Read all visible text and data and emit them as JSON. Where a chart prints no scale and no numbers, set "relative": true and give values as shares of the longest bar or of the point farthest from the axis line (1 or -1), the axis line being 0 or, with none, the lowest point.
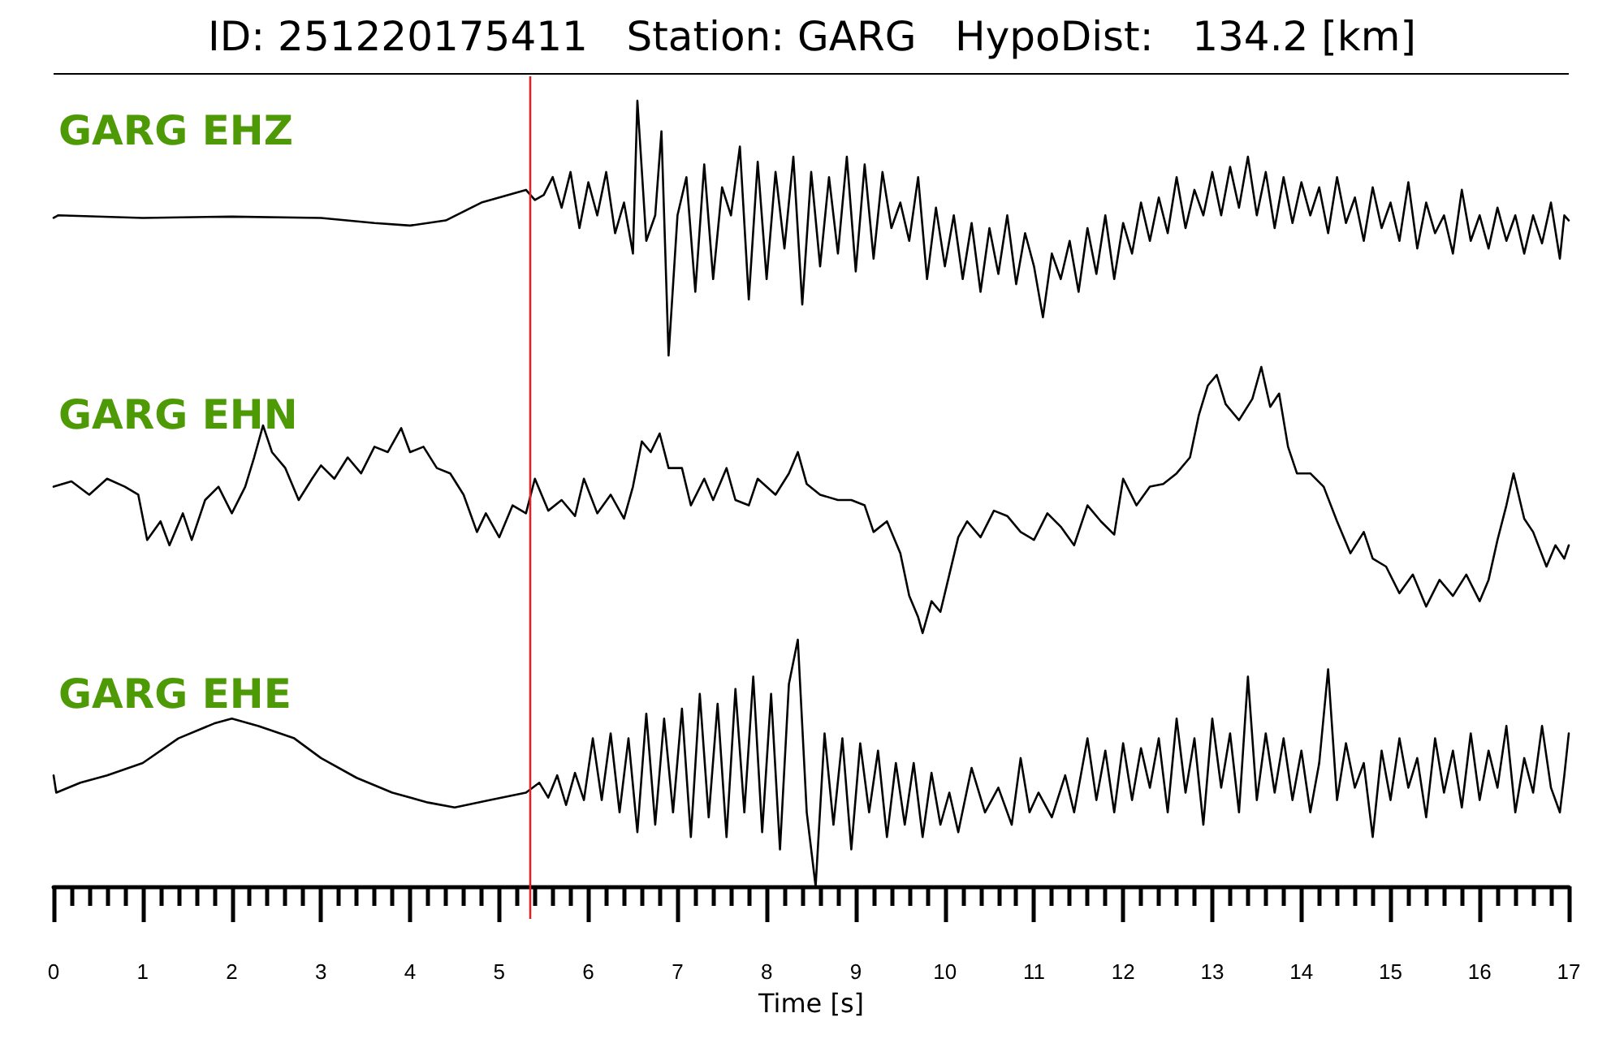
{
  "chart_data": [
    {
      "type": "line",
      "title": "ID: 251220175411   Station: GARG   HypoDist:   134.2 [km]",
      "relative": true,
      "xlim": [
        0,
        17
      ],
      "tick_labels": false,
      "legend": "top left",
      "marker": "none",
      "ref_lines": [
        {
          "axis": "x",
          "value": 5.35,
          "color": "#d62728"
        }
      ],
      "x": [
        0,
        0.05,
        1,
        2,
        3,
        3.6,
        4,
        4.4,
        4.8,
        5.3,
        5.4,
        5.5,
        5.6,
        5.7,
        5.8,
        5.9,
        6.0,
        6.1,
        6.2,
        6.3,
        6.4,
        6.5,
        6.55,
        6.65,
        6.75,
        6.82,
        6.9,
        7.0,
        7.1,
        7.2,
        7.3,
        7.4,
        7.5,
        7.6,
        7.7,
        7.8,
        7.9,
        8.0,
        8.1,
        8.2,
        8.3,
        8.4,
        8.5,
        8.6,
        8.7,
        8.8,
        8.9,
        9.0,
        9.1,
        9.2,
        9.3,
        9.4,
        9.5,
        9.6,
        9.7,
        9.8,
        9.9,
        10.0,
        10.1,
        10.2,
        10.3,
        10.4,
        10.5,
        10.6,
        10.7,
        10.8,
        10.9,
        11.0,
        11.1,
        11.2,
        11.3,
        11.4,
        11.5,
        11.6,
        11.7,
        11.8,
        11.9,
        12.0,
        12.1,
        12.2,
        12.3,
        12.4,
        12.5,
        12.6,
        12.7,
        12.8,
        12.9,
        13.0,
        13.1,
        13.2,
        13.3,
        13.4,
        13.5,
        13.6,
        13.7,
        13.8,
        13.9,
        14.0,
        14.1,
        14.2,
        14.3,
        14.4,
        14.5,
        14.6,
        14.7,
        14.8,
        14.9,
        15.0,
        15.1,
        15.2,
        15.3,
        15.4,
        15.5,
        15.6,
        15.7,
        15.8,
        15.9,
        16.0,
        16.1,
        16.2,
        16.3,
        16.4,
        16.5,
        16.6,
        16.7,
        16.8,
        16.9,
        16.95,
        17.0
      ],
      "series": [
        {
          "name": "GARG EHZ",
          "color": "#000000",
          "values": [
            0.54,
            0.55,
            0.54,
            0.545,
            0.54,
            0.52,
            0.51,
            0.53,
            0.6,
            0.65,
            0.61,
            0.63,
            0.7,
            0.58,
            0.72,
            0.5,
            0.68,
            0.55,
            0.72,
            0.48,
            0.6,
            0.4,
            1.0,
            0.45,
            0.55,
            0.88,
            0.0,
            0.55,
            0.7,
            0.25,
            0.75,
            0.3,
            0.66,
            0.55,
            0.82,
            0.22,
            0.76,
            0.3,
            0.72,
            0.42,
            0.78,
            0.2,
            0.72,
            0.35,
            0.7,
            0.4,
            0.78,
            0.33,
            0.75,
            0.38,
            0.72,
            0.5,
            0.6,
            0.45,
            0.7,
            0.3,
            0.58,
            0.35,
            0.55,
            0.3,
            0.52,
            0.25,
            0.5,
            0.32,
            0.55,
            0.28,
            0.48,
            0.35,
            0.15,
            0.4,
            0.3,
            0.45,
            0.25,
            0.5,
            0.32,
            0.55,
            0.3,
            0.52,
            0.4,
            0.6,
            0.45,
            0.62,
            0.48,
            0.7,
            0.5,
            0.65,
            0.55,
            0.72,
            0.55,
            0.74,
            0.58,
            0.78,
            0.55,
            0.72,
            0.5,
            0.7,
            0.52,
            0.68,
            0.55,
            0.66,
            0.48,
            0.7,
            0.52,
            0.62,
            0.45,
            0.66,
            0.5,
            0.6,
            0.45,
            0.68,
            0.42,
            0.6,
            0.48,
            0.55,
            0.4,
            0.65,
            0.45,
            0.55,
            0.42,
            0.58,
            0.45,
            0.55,
            0.4,
            0.55,
            0.44,
            0.6,
            0.38,
            0.55,
            0.53
          ]
        }
      ]
    },
    {
      "type": "line",
      "relative": true,
      "xlim": [
        0,
        17
      ],
      "tick_labels": false,
      "legend": "top left",
      "marker": "none",
      "ref_lines": [
        {
          "axis": "x",
          "value": 5.35,
          "color": "#d62728"
        }
      ],
      "x": [
        0,
        0.2,
        0.4,
        0.6,
        0.8,
        0.95,
        1.05,
        1.2,
        1.3,
        1.45,
        1.55,
        1.7,
        1.85,
        2.0,
        2.15,
        2.25,
        2.35,
        2.45,
        2.6,
        2.75,
        2.9,
        3.0,
        3.15,
        3.3,
        3.45,
        3.6,
        3.75,
        3.9,
        4.0,
        4.15,
        4.3,
        4.45,
        4.6,
        4.75,
        4.85,
        5.0,
        5.15,
        5.3,
        5.4,
        5.55,
        5.7,
        5.85,
        5.95,
        6.1,
        6.25,
        6.4,
        6.5,
        6.6,
        6.7,
        6.8,
        6.9,
        7.05,
        7.15,
        7.3,
        7.4,
        7.55,
        7.65,
        7.8,
        7.9,
        8.1,
        8.25,
        8.35,
        8.45,
        8.6,
        8.8,
        8.95,
        9.1,
        9.2,
        9.35,
        9.5,
        9.6,
        9.7,
        9.75,
        9.85,
        9.95,
        10.05,
        10.15,
        10.25,
        10.4,
        10.55,
        10.7,
        10.85,
        11.0,
        11.15,
        11.3,
        11.45,
        11.6,
        11.75,
        11.9,
        12.0,
        12.15,
        12.3,
        12.45,
        12.6,
        12.75,
        12.85,
        12.95,
        13.05,
        13.15,
        13.3,
        13.45,
        13.55,
        13.65,
        13.75,
        13.85,
        13.95,
        14.1,
        14.25,
        14.4,
        14.55,
        14.7,
        14.8,
        14.95,
        15.1,
        15.25,
        15.4,
        15.55,
        15.7,
        15.85,
        16.0,
        16.1,
        16.2,
        16.3,
        16.38,
        16.5,
        16.6,
        16.75,
        16.85,
        16.95,
        17.0
      ],
      "series": [
        {
          "name": "GARG EHN",
          "color": "#000000",
          "values": [
            0.55,
            0.57,
            0.52,
            0.58,
            0.55,
            0.52,
            0.35,
            0.42,
            0.33,
            0.45,
            0.35,
            0.5,
            0.55,
            0.45,
            0.55,
            0.66,
            0.78,
            0.68,
            0.62,
            0.5,
            0.58,
            0.63,
            0.58,
            0.66,
            0.6,
            0.7,
            0.68,
            0.77,
            0.68,
            0.7,
            0.62,
            0.6,
            0.52,
            0.38,
            0.45,
            0.36,
            0.48,
            0.45,
            0.58,
            0.46,
            0.5,
            0.44,
            0.58,
            0.45,
            0.52,
            0.43,
            0.55,
            0.72,
            0.68,
            0.75,
            0.62,
            0.62,
            0.48,
            0.58,
            0.5,
            0.62,
            0.5,
            0.48,
            0.58,
            0.52,
            0.6,
            0.68,
            0.56,
            0.52,
            0.5,
            0.5,
            0.48,
            0.38,
            0.42,
            0.3,
            0.14,
            0.06,
            0.0,
            0.12,
            0.08,
            0.22,
            0.36,
            0.42,
            0.36,
            0.46,
            0.44,
            0.38,
            0.35,
            0.45,
            0.4,
            0.33,
            0.48,
            0.42,
            0.37,
            0.58,
            0.48,
            0.55,
            0.56,
            0.6,
            0.66,
            0.82,
            0.93,
            0.97,
            0.86,
            0.8,
            0.88,
            1.0,
            0.85,
            0.9,
            0.7,
            0.6,
            0.6,
            0.55,
            0.42,
            0.3,
            0.38,
            0.28,
            0.25,
            0.15,
            0.22,
            0.1,
            0.2,
            0.14,
            0.22,
            0.12,
            0.2,
            0.35,
            0.48,
            0.6,
            0.43,
            0.38,
            0.25,
            0.33,
            0.28,
            0.33
          ]
        }
      ]
    },
    {
      "type": "line",
      "relative": true,
      "xlim": [
        0,
        17
      ],
      "tick_labels": "x",
      "legend": "top left",
      "marker": "none",
      "xlabel": "Time [s]",
      "ref_lines": [
        {
          "axis": "x",
          "value": 5.35,
          "color": "#d62728"
        }
      ],
      "xticks": [
        0,
        {
          "value": 0.2,
          "label": null
        },
        {
          "value": 0.4,
          "label": null
        },
        {
          "value": 0.6,
          "label": null
        },
        {
          "value": 0.8,
          "label": null
        },
        1,
        {
          "value": 1.2,
          "label": null
        },
        {
          "value": 1.4,
          "label": null
        },
        {
          "value": 1.6,
          "label": null
        },
        {
          "value": 1.8,
          "label": null
        },
        2,
        {
          "value": 2.2,
          "label": null
        },
        {
          "value": 2.4,
          "label": null
        },
        {
          "value": 2.6,
          "label": null
        },
        {
          "value": 2.8,
          "label": null
        },
        3,
        {
          "value": 3.2,
          "label": null
        },
        {
          "value": 3.4,
          "label": null
        },
        {
          "value": 3.6,
          "label": null
        },
        {
          "value": 3.8,
          "label": null
        },
        4,
        {
          "value": 4.2,
          "label": null
        },
        {
          "value": 4.4,
          "label": null
        },
        {
          "value": 4.6,
          "label": null
        },
        {
          "value": 4.8,
          "label": null
        },
        5,
        {
          "value": 5.2,
          "label": null
        },
        {
          "value": 5.4,
          "label": null
        },
        {
          "value": 5.6,
          "label": null
        },
        {
          "value": 5.8,
          "label": null
        },
        6,
        {
          "value": 6.2,
          "label": null
        },
        {
          "value": 6.4,
          "label": null
        },
        {
          "value": 6.6,
          "label": null
        },
        {
          "value": 6.8,
          "label": null
        },
        7,
        {
          "value": 7.2,
          "label": null
        },
        {
          "value": 7.4,
          "label": null
        },
        {
          "value": 7.6,
          "label": null
        },
        {
          "value": 7.8,
          "label": null
        },
        8,
        {
          "value": 8.2,
          "label": null
        },
        {
          "value": 8.4,
          "label": null
        },
        {
          "value": 8.6,
          "label": null
        },
        {
          "value": 8.8,
          "label": null
        },
        9,
        {
          "value": 9.2,
          "label": null
        },
        {
          "value": 9.4,
          "label": null
        },
        {
          "value": 9.6,
          "label": null
        },
        {
          "value": 9.8,
          "label": null
        },
        10,
        {
          "value": 10.2,
          "label": null
        },
        {
          "value": 10.4,
          "label": null
        },
        {
          "value": 10.6,
          "label": null
        },
        {
          "value": 10.8,
          "label": null
        },
        11,
        {
          "value": 11.2,
          "label": null
        },
        {
          "value": 11.4,
          "label": null
        },
        {
          "value": 11.6,
          "label": null
        },
        {
          "value": 11.8,
          "label": null
        },
        12,
        {
          "value": 12.2,
          "label": null
        },
        {
          "value": 12.4,
          "label": null
        },
        {
          "value": 12.6,
          "label": null
        },
        {
          "value": 12.8,
          "label": null
        },
        13,
        {
          "value": 13.2,
          "label": null
        },
        {
          "value": 13.4,
          "label": null
        },
        {
          "value": 13.6,
          "label": null
        },
        {
          "value": 13.8,
          "label": null
        },
        14,
        {
          "value": 14.2,
          "label": null
        },
        {
          "value": 14.4,
          "label": null
        },
        {
          "value": 14.6,
          "label": null
        },
        {
          "value": 14.8,
          "label": null
        },
        15,
        {
          "value": 15.2,
          "label": null
        },
        {
          "value": 15.4,
          "label": null
        },
        {
          "value": 15.6,
          "label": null
        },
        {
          "value": 15.8,
          "label": null
        },
        16,
        {
          "value": 16.2,
          "label": null
        },
        {
          "value": 16.4,
          "label": null
        },
        {
          "value": 16.6,
          "label": null
        },
        {
          "value": 16.8,
          "label": null
        },
        17
      ],
      "x": [
        0,
        0.03,
        0.3,
        0.6,
        1.0,
        1.4,
        1.8,
        2.0,
        2.3,
        2.7,
        3.0,
        3.4,
        3.8,
        4.2,
        4.5,
        4.9,
        5.3,
        5.45,
        5.55,
        5.65,
        5.75,
        5.85,
        5.95,
        6.05,
        6.15,
        6.25,
        6.35,
        6.45,
        6.55,
        6.65,
        6.75,
        6.85,
        6.95,
        7.05,
        7.15,
        7.25,
        7.35,
        7.45,
        7.55,
        7.65,
        7.75,
        7.85,
        7.95,
        8.05,
        8.15,
        8.25,
        8.35,
        8.45,
        8.55,
        8.65,
        8.75,
        8.85,
        8.95,
        9.05,
        9.15,
        9.25,
        9.35,
        9.45,
        9.55,
        9.65,
        9.75,
        9.85,
        9.95,
        10.05,
        10.15,
        10.3,
        10.45,
        10.6,
        10.75,
        10.85,
        10.95,
        11.05,
        11.2,
        11.35,
        11.45,
        11.6,
        11.7,
        11.8,
        11.9,
        12.0,
        12.1,
        12.2,
        12.3,
        12.4,
        12.5,
        12.6,
        12.7,
        12.8,
        12.9,
        13.0,
        13.1,
        13.2,
        13.3,
        13.4,
        13.5,
        13.6,
        13.7,
        13.8,
        13.9,
        14.0,
        14.1,
        14.2,
        14.3,
        14.4,
        14.5,
        14.6,
        14.7,
        14.8,
        14.9,
        15.0,
        15.1,
        15.2,
        15.3,
        15.4,
        15.5,
        15.6,
        15.7,
        15.8,
        15.9,
        16.0,
        16.1,
        16.2,
        16.3,
        16.4,
        16.5,
        16.6,
        16.7,
        16.8,
        16.9,
        16.95,
        17.0
      ],
      "series": [
        {
          "name": "GARG EHE",
          "color": "#000000",
          "values": [
            0.45,
            0.38,
            0.42,
            0.45,
            0.5,
            0.6,
            0.66,
            0.68,
            0.65,
            0.6,
            0.52,
            0.44,
            0.38,
            0.34,
            0.32,
            0.35,
            0.38,
            0.42,
            0.36,
            0.45,
            0.33,
            0.46,
            0.35,
            0.6,
            0.35,
            0.62,
            0.3,
            0.6,
            0.22,
            0.7,
            0.25,
            0.68,
            0.3,
            0.72,
            0.2,
            0.78,
            0.28,
            0.74,
            0.2,
            0.8,
            0.3,
            0.85,
            0.22,
            0.78,
            0.15,
            0.82,
            1.0,
            0.3,
            0.0,
            0.62,
            0.25,
            0.6,
            0.15,
            0.58,
            0.3,
            0.55,
            0.2,
            0.5,
            0.25,
            0.5,
            0.2,
            0.46,
            0.25,
            0.38,
            0.22,
            0.48,
            0.3,
            0.4,
            0.25,
            0.52,
            0.3,
            0.38,
            0.28,
            0.45,
            0.3,
            0.6,
            0.35,
            0.55,
            0.3,
            0.58,
            0.35,
            0.56,
            0.4,
            0.6,
            0.3,
            0.68,
            0.38,
            0.6,
            0.25,
            0.68,
            0.4,
            0.62,
            0.3,
            0.85,
            0.35,
            0.62,
            0.38,
            0.6,
            0.35,
            0.55,
            0.3,
            0.5,
            0.88,
            0.35,
            0.58,
            0.4,
            0.5,
            0.2,
            0.55,
            0.35,
            0.6,
            0.4,
            0.52,
            0.28,
            0.6,
            0.38,
            0.55,
            0.32,
            0.62,
            0.35,
            0.55,
            0.4,
            0.65,
            0.3,
            0.52,
            0.38,
            0.65,
            0.4,
            0.3,
            0.45,
            0.62
          ]
        }
      ]
    }
  ]
}
